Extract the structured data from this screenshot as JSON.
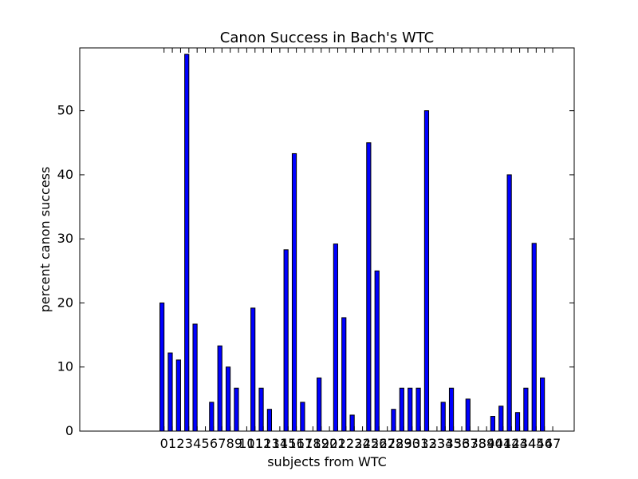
{
  "chart_data": {
    "type": "bar",
    "title": "Canon Success in Bach's WTC",
    "xlabel": "subjects from WTC",
    "ylabel": "percent canon success",
    "ylim": [
      0,
      59.8
    ],
    "yticks": [
      0,
      10,
      20,
      30,
      40,
      50
    ],
    "grid": false,
    "bar_color": "#0000ff",
    "categories": [
      "0",
      "1",
      "2",
      "3",
      "4",
      "5",
      "6",
      "7",
      "8",
      "9",
      "10",
      "11",
      "12",
      "13",
      "14",
      "15",
      "16",
      "17",
      "18",
      "19",
      "20",
      "21",
      "22",
      "23",
      "24",
      "25",
      "26",
      "27",
      "28",
      "29",
      "30",
      "31",
      "32",
      "33",
      "34",
      "35",
      "36",
      "37",
      "38",
      "39",
      "40",
      "41",
      "42",
      "43",
      "44",
      "45",
      "46",
      "47"
    ],
    "values": [
      20.0,
      12.2,
      11.1,
      58.8,
      16.7,
      0,
      4.5,
      13.3,
      10.0,
      6.7,
      0,
      19.2,
      6.7,
      3.4,
      0,
      28.3,
      43.3,
      4.5,
      0,
      8.3,
      0,
      29.2,
      17.7,
      2.5,
      0,
      45.0,
      25.0,
      0,
      3.4,
      6.7,
      6.7,
      6.7,
      50.0,
      0,
      4.5,
      6.7,
      0,
      5.0,
      0,
      0,
      2.3,
      3.9,
      40.0,
      2.9,
      6.7,
      29.3,
      8.3,
      0
    ]
  }
}
